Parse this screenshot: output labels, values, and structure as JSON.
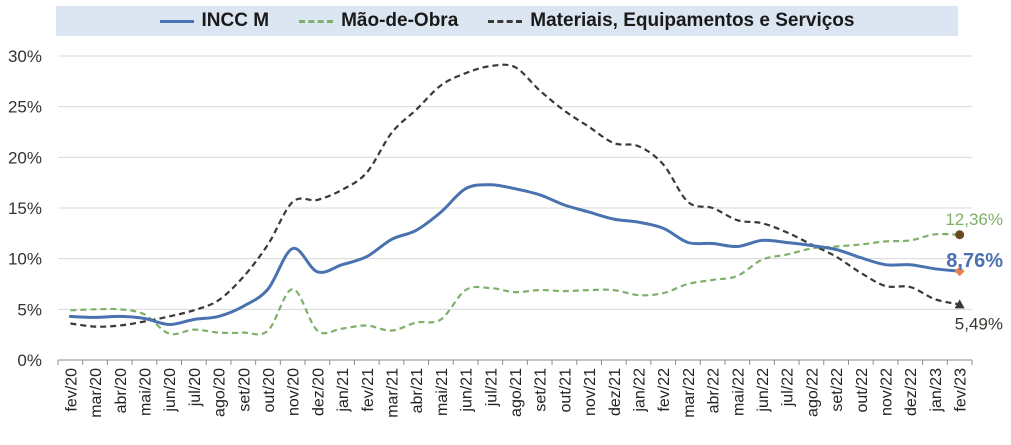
{
  "chart_data": {
    "type": "line",
    "categories": [
      "fev/20",
      "mar/20",
      "abr/20",
      "mai/20",
      "jun/20",
      "jul/20",
      "ago/20",
      "set/20",
      "out/20",
      "nov/20",
      "dez/20",
      "jan/21",
      "fev/21",
      "mar/21",
      "abr/21",
      "mai/21",
      "jun/21",
      "jul/21",
      "ago/21",
      "set/21",
      "out/21",
      "nov/21",
      "dez/21",
      "jan/22",
      "fev/22",
      "mar/22",
      "abr/22",
      "mai/22",
      "jun/22",
      "jul/22",
      "ago/22",
      "set/22",
      "out/22",
      "nov/22",
      "dez/22",
      "jan/23",
      "fev/23"
    ],
    "series": [
      {
        "name": "INCC M",
        "style": "solid",
        "color": "#4a72b0",
        "values": [
          4.3,
          4.2,
          4.3,
          4.1,
          3.5,
          4.0,
          4.3,
          5.3,
          7.0,
          11.0,
          8.7,
          9.4,
          10.2,
          11.9,
          12.8,
          14.6,
          16.9,
          17.3,
          16.9,
          16.3,
          15.3,
          14.6,
          13.9,
          13.6,
          13.0,
          11.6,
          11.5,
          11.2,
          11.8,
          11.6,
          11.3,
          10.9,
          10.1,
          9.4,
          9.4,
          9.0,
          8.76
        ]
      },
      {
        "name": "Mão-de-Obra",
        "style": "dashed",
        "color": "#7fb06a",
        "values": [
          4.9,
          5.0,
          5.0,
          4.5,
          2.6,
          3.0,
          2.7,
          2.7,
          2.9,
          7.0,
          2.9,
          3.1,
          3.4,
          2.9,
          3.7,
          4.0,
          6.9,
          7.1,
          6.7,
          6.9,
          6.8,
          6.9,
          6.9,
          6.4,
          6.6,
          7.5,
          7.9,
          8.3,
          9.9,
          10.4,
          11.0,
          11.2,
          11.4,
          11.7,
          11.8,
          12.4,
          12.36
        ]
      },
      {
        "name": "Materiais, Equipamentos e Serviços",
        "style": "dashed",
        "color": "#3a3a33",
        "values": [
          3.6,
          3.3,
          3.4,
          3.8,
          4.3,
          4.9,
          5.9,
          8.2,
          11.4,
          15.6,
          15.8,
          16.8,
          18.5,
          22.4,
          24.7,
          27.1,
          28.3,
          29.0,
          28.9,
          26.6,
          24.6,
          23.0,
          21.4,
          21.1,
          19.3,
          15.6,
          15.0,
          13.8,
          13.5,
          12.6,
          11.4,
          10.2,
          8.6,
          7.3,
          7.2,
          6.0,
          5.49
        ]
      }
    ],
    "end_labels": [
      {
        "series": 0,
        "text": "8,76%",
        "marker_color": "#e8814a",
        "text_color": "#4a72b0",
        "bold": true
      },
      {
        "series": 1,
        "text": "12,36%",
        "marker_color": "#6b4a20",
        "text_color": "#7fb06a",
        "bold": false
      },
      {
        "series": 2,
        "text": "5,49%",
        "marker_color": "#3a3a33",
        "text_color": "#3a3a33",
        "bold": false
      }
    ],
    "ylim": [
      0,
      30
    ],
    "yticks": [
      0,
      5,
      10,
      15,
      20,
      25,
      30
    ],
    "ytick_labels": [
      "0%",
      "5%",
      "10%",
      "15%",
      "20%",
      "25%",
      "30%"
    ],
    "grid": "horizontal",
    "legend": "top"
  }
}
